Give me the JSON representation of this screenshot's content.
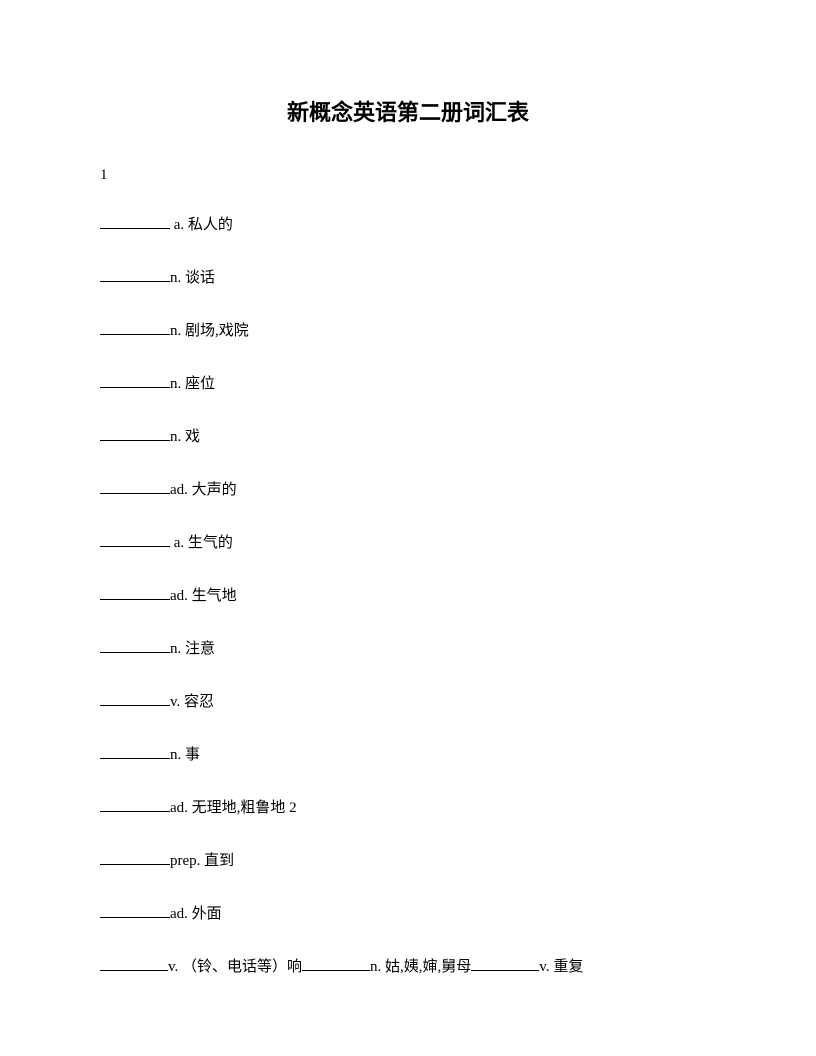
{
  "title": "新概念英语第二册词汇表",
  "section_number": "1",
  "entries": [
    {
      "prefix_space": " ",
      "pos": "a.",
      "def": "私人的"
    },
    {
      "prefix_space": "",
      "pos": "n.",
      "def": "谈话"
    },
    {
      "prefix_space": "",
      "pos": "n.",
      "def": "剧场,戏院"
    },
    {
      "prefix_space": "",
      "pos": "n.",
      "def": "座位"
    },
    {
      "prefix_space": "",
      "pos": "n.",
      "def": "戏"
    },
    {
      "prefix_space": "",
      "pos": "ad.",
      "def": "大声的"
    },
    {
      "prefix_space": " ",
      "pos": "a.",
      "def": "生气的"
    },
    {
      "prefix_space": "",
      "pos": "ad.",
      "def": "生气地"
    },
    {
      "prefix_space": "",
      "pos": "n.",
      "def": "注意"
    },
    {
      "prefix_space": "",
      "pos": "v.",
      "def": "容忍"
    },
    {
      "prefix_space": "",
      "pos": "n.",
      "def": "事"
    },
    {
      "prefix_space": "",
      "pos": "ad.",
      "def": "无理地,粗鲁地 2"
    },
    {
      "prefix_space": "",
      "pos": "prep.",
      "def": "直到"
    },
    {
      "prefix_space": "",
      "pos": "ad.",
      "def": "外面"
    }
  ],
  "last_row": {
    "items": [
      {
        "pos": "v.",
        "def": "（铃、电话等）响"
      },
      {
        "pos": "n.",
        "def": "姑,姨,婶,舅母"
      },
      {
        "pos": "v.",
        "def": "重复"
      }
    ]
  }
}
